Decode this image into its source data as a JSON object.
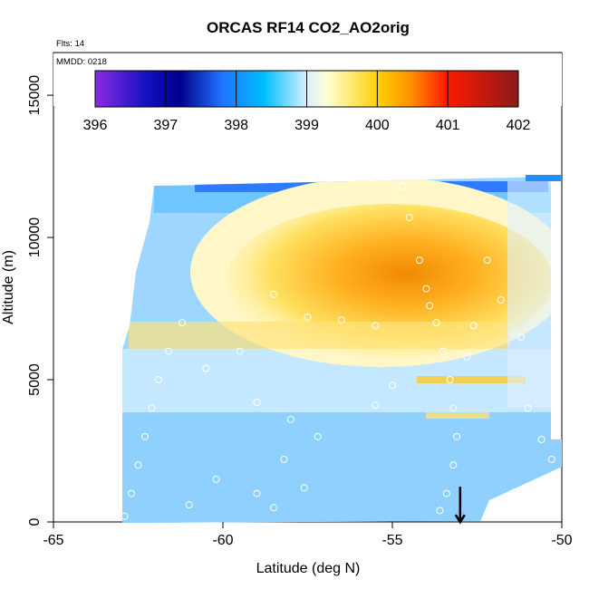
{
  "chart_data": {
    "type": "heatmap",
    "title": "ORCAS RF14 CO2_AO2orig",
    "annotations": {
      "flights": "Flts: 14",
      "mmdd": "MMDD: 0218"
    },
    "xlabel": "Latitude (deg N)",
    "ylabel": "Altitude (m)",
    "xlim": [
      -65,
      -50
    ],
    "ylim": [
      0,
      16500
    ],
    "x_ticks": [
      -65,
      -60,
      -55,
      -50
    ],
    "x_tick_labels": [
      "-65",
      "-60",
      "-55",
      "-50"
    ],
    "y_ticks": [
      0,
      5000,
      10000,
      15000
    ],
    "y_tick_labels": [
      "0",
      "5000",
      "10000",
      "15000"
    ],
    "colorbar": {
      "min": 396,
      "max": 402,
      "ticks": [
        396,
        397,
        398,
        399,
        400,
        401,
        402
      ],
      "tick_labels": [
        "396",
        "397",
        "398",
        "399",
        "400",
        "401",
        "402"
      ],
      "stops": [
        "#8a2be2",
        "#00008b",
        "#1e90ff",
        "#00bfff",
        "#ffffff",
        "#ffd700",
        "#ff8c00",
        "#ff0000",
        "#8b1a1a"
      ]
    },
    "field_description_values": {
      "background_ppm": 398.2,
      "max_ppm": 400.8,
      "min_ppm": 397.0
    },
    "flight_track": [
      {
        "lat": -62.9,
        "alt": 200
      },
      {
        "lat": -62.7,
        "alt": 1000
      },
      {
        "lat": -62.5,
        "alt": 2000
      },
      {
        "lat": -62.3,
        "alt": 3000
      },
      {
        "lat": -62.1,
        "alt": 4000
      },
      {
        "lat": -61.9,
        "alt": 5000
      },
      {
        "lat": -61.6,
        "alt": 6000
      },
      {
        "lat": -61.2,
        "alt": 7000
      },
      {
        "lat": -61.8,
        "alt": 12000
      },
      {
        "lat": -60.8,
        "alt": 12100
      },
      {
        "lat": -60.0,
        "alt": 12100
      },
      {
        "lat": -59.3,
        "alt": 12100
      },
      {
        "lat": -58.5,
        "alt": 12100
      },
      {
        "lat": -57.8,
        "alt": 12100
      },
      {
        "lat": -57.0,
        "alt": 12100
      },
      {
        "lat": -56.3,
        "alt": 12100
      },
      {
        "lat": -55.6,
        "alt": 12100
      },
      {
        "lat": -54.7,
        "alt": 11800
      },
      {
        "lat": -54.5,
        "alt": 10700
      },
      {
        "lat": -54.2,
        "alt": 9200
      },
      {
        "lat": -54.0,
        "alt": 8200
      },
      {
        "lat": -53.9,
        "alt": 7600
      },
      {
        "lat": -53.7,
        "alt": 7000
      },
      {
        "lat": -53.5,
        "alt": 6000
      },
      {
        "lat": -53.3,
        "alt": 5000
      },
      {
        "lat": -53.2,
        "alt": 4000
      },
      {
        "lat": -53.1,
        "alt": 3000
      },
      {
        "lat": -53.2,
        "alt": 2000
      },
      {
        "lat": -53.4,
        "alt": 1000
      },
      {
        "lat": -53.6,
        "alt": 400
      },
      {
        "lat": -58.5,
        "alt": 8000
      },
      {
        "lat": -57.5,
        "alt": 7200
      },
      {
        "lat": -56.5,
        "alt": 7100
      },
      {
        "lat": -55.5,
        "alt": 6900
      },
      {
        "lat": -59.5,
        "alt": 6000
      },
      {
        "lat": -60.5,
        "alt": 5400
      },
      {
        "lat": -59.0,
        "alt": 4200
      },
      {
        "lat": -58.0,
        "alt": 3600
      },
      {
        "lat": -57.2,
        "alt": 3000
      },
      {
        "lat": -58.2,
        "alt": 2200
      },
      {
        "lat": -57.6,
        "alt": 1200
      },
      {
        "lat": -58.5,
        "alt": 500
      },
      {
        "lat": -61.0,
        "alt": 600
      },
      {
        "lat": -60.2,
        "alt": 1500
      },
      {
        "lat": -59.0,
        "alt": 1000
      },
      {
        "lat": -51.0,
        "alt": 12400
      },
      {
        "lat": -50.7,
        "alt": 12400
      },
      {
        "lat": -50.5,
        "alt": 12400
      },
      {
        "lat": -51.2,
        "alt": 6500
      },
      {
        "lat": -51.0,
        "alt": 4000
      },
      {
        "lat": -50.6,
        "alt": 2900
      },
      {
        "lat": -50.3,
        "alt": 2200
      },
      {
        "lat": -51.8,
        "alt": 7800
      },
      {
        "lat": -52.2,
        "alt": 9200
      },
      {
        "lat": -52.6,
        "alt": 6900
      },
      {
        "lat": -52.8,
        "alt": 5800
      },
      {
        "lat": -56.8,
        "alt": 12200
      },
      {
        "lat": -55.3,
        "alt": 12200
      },
      {
        "lat": -55.0,
        "alt": 4800
      },
      {
        "lat": -55.5,
        "alt": 4100
      }
    ],
    "marker": {
      "lat": -53.0,
      "alt": 600,
      "type": "down-arrow"
    }
  }
}
